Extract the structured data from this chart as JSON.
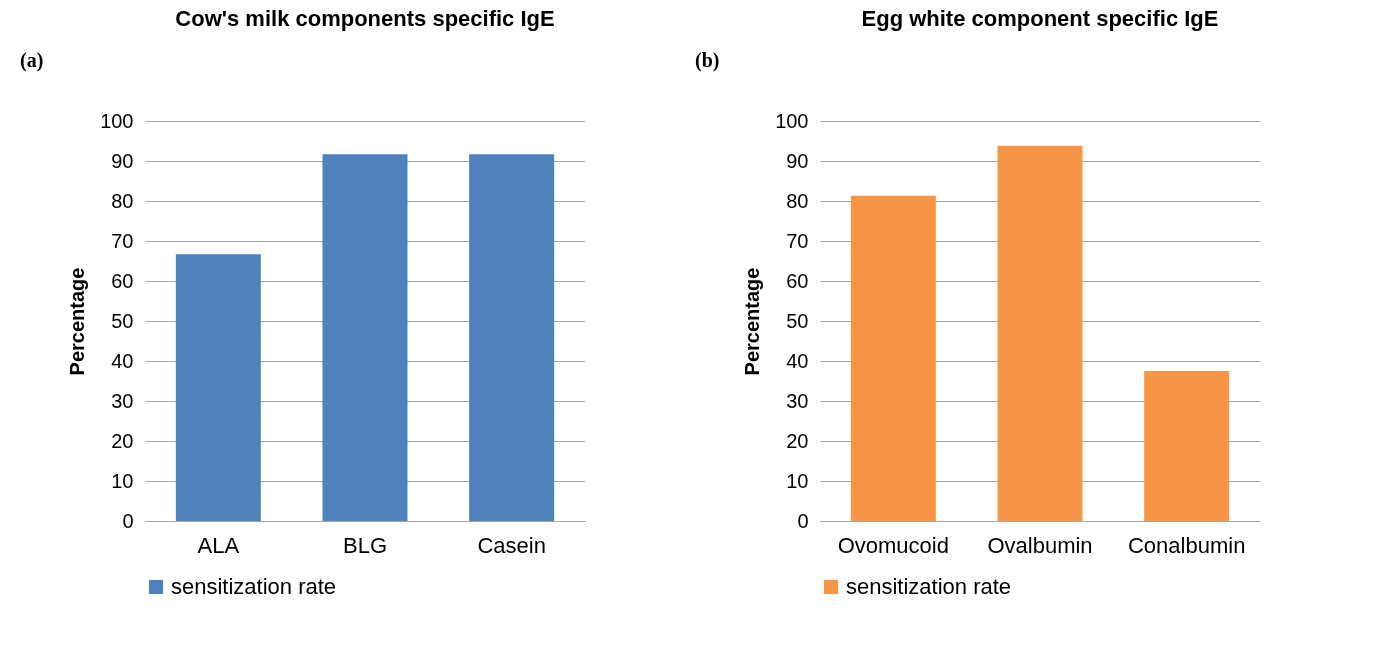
{
  "chart_data": [
    {
      "type": "bar",
      "title": "Cow's milk components specific IgE",
      "ylabel": "Percentage",
      "categories": [
        "ALA",
        "BLG",
        "Casein"
      ],
      "series": [
        {
          "name": "sensitization rate",
          "color": "#4f81bd",
          "values": [
            66.7,
            91.7,
            91.7
          ]
        }
      ],
      "ylim": [
        0,
        100
      ],
      "yticks": [
        0,
        10,
        20,
        30,
        40,
        50,
        60,
        70,
        80,
        90,
        100
      ],
      "grid": "y",
      "legend": "bottom",
      "annotations": [
        "(a)"
      ]
    },
    {
      "type": "bar",
      "title": "Egg white component specific IgE",
      "ylabel": "Percentage",
      "categories": [
        "Ovomucoid",
        "Ovalbumin",
        "Conalbumin"
      ],
      "series": [
        {
          "name": "sensitization rate",
          "color": "#f79646",
          "values": [
            81.3,
            93.8,
            37.5
          ]
        }
      ],
      "ylim": [
        0,
        100
      ],
      "yticks": [
        0,
        10,
        20,
        30,
        40,
        50,
        60,
        70,
        80,
        90,
        100
      ],
      "grid": "y",
      "legend": "bottom",
      "annotations": [
        "(b)"
      ]
    }
  ]
}
